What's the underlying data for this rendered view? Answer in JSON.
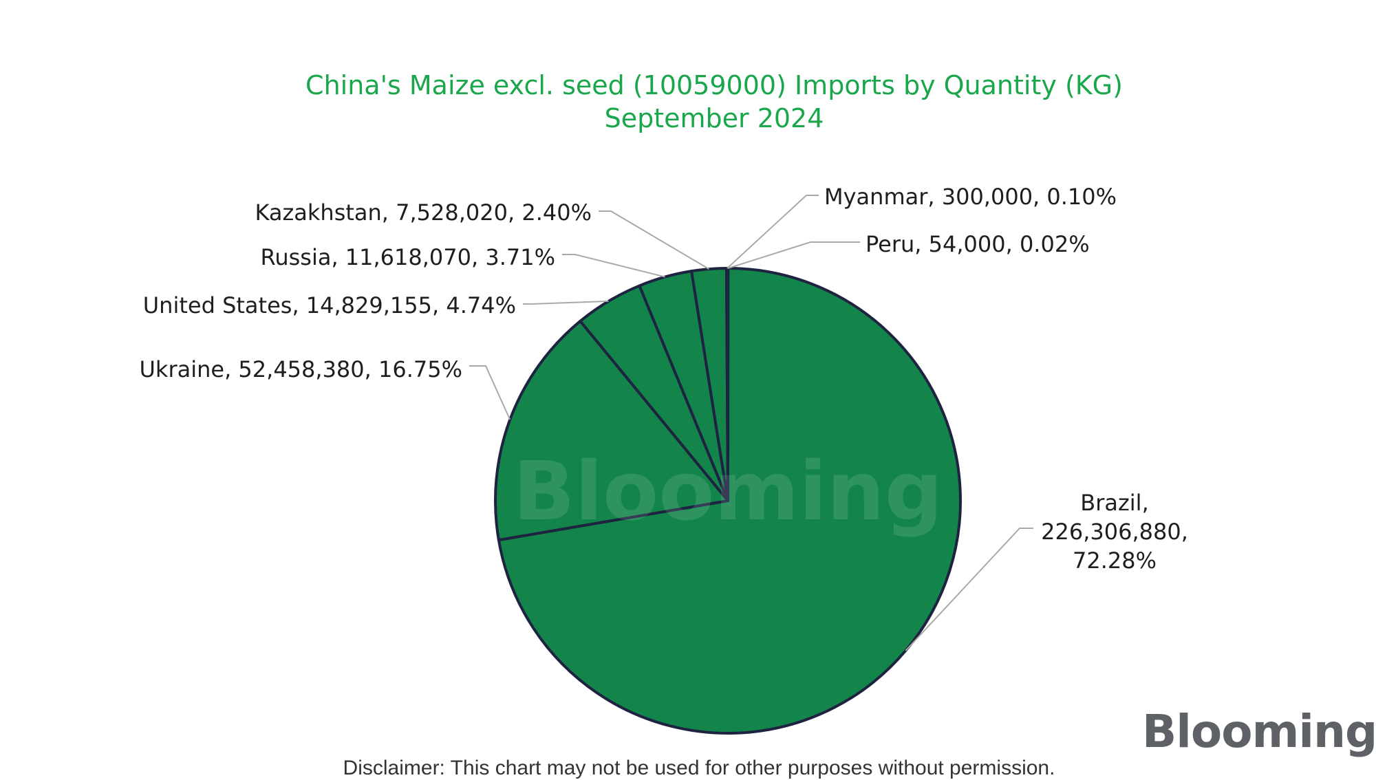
{
  "chart_data": {
    "type": "pie",
    "title_lines": [
      "China's Maize excl. seed (10059000) Imports by Quantity (KG)",
      "September 2024"
    ],
    "slices": [
      {
        "label": "Peru, 54,000, 0.02%",
        "value": 54000,
        "percent": 0.02
      },
      {
        "label": "Brazil, 226,306,880, 72.28%",
        "value": 226306880,
        "percent": 72.28
      },
      {
        "label": "Ukraine, 52,458,380, 16.75%",
        "value": 52458380,
        "percent": 16.75
      },
      {
        "label": "United States, 14,829,155, 4.74%",
        "value": 14829155,
        "percent": 4.74
      },
      {
        "label": "Russia, 11,618,070, 3.71%",
        "value": 11618070,
        "percent": 3.71
      },
      {
        "label": "Kazakhstan, 7,528,020, 2.40%",
        "value": 7528020,
        "percent": 2.4
      },
      {
        "label": "Myanmar, 300,000, 0.10%",
        "value": 300000,
        "percent": 0.1
      }
    ],
    "label_lines": {
      "Brazil": [
        "Brazil,",
        "226,306,880,",
        "72.28%"
      ]
    },
    "colors": {
      "slice_fill": "#13854a",
      "slice_stroke": "#1d2340",
      "leader_line": "#a9a9a9",
      "label_text": "#1e1e1e",
      "title": "#1aa64a"
    },
    "watermark": "Blooming"
  },
  "logo": "Blooming",
  "disclaimer": "Disclaimer: This chart may not be used for other purposes without permission."
}
